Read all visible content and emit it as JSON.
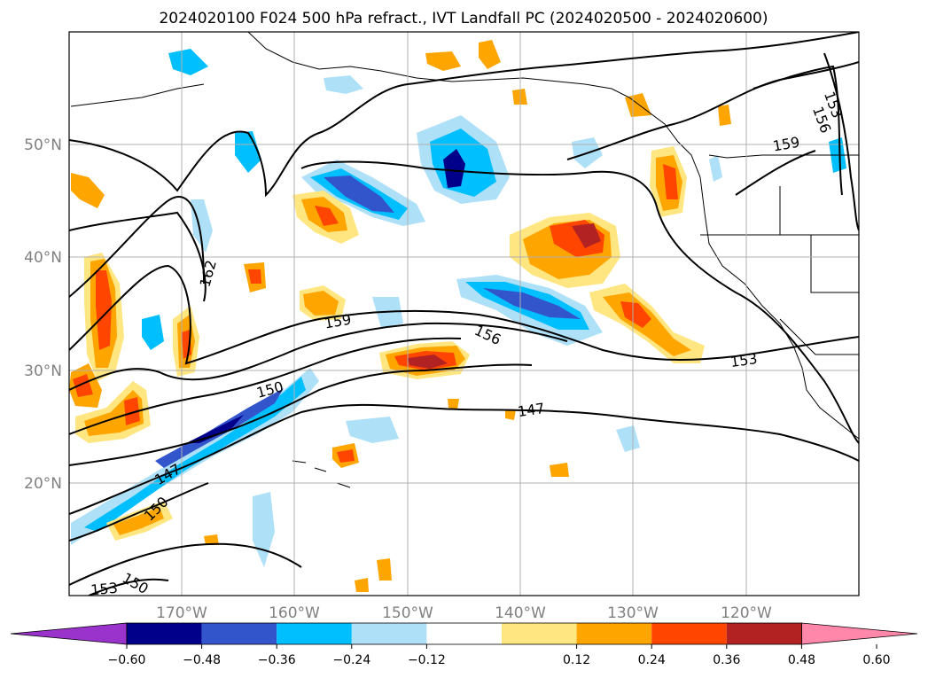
{
  "title": "2024020100 F024 500 hPa refract., IVT Landfall PC (2024020500 - 2024020600)",
  "lat_labels": [
    "50°N",
    "40°N",
    "30°N",
    "20°N"
  ],
  "lon_labels": [
    "170°W",
    "160°W",
    "150°W",
    "140°W",
    "130°W",
    "120°W"
  ],
  "colorbar": {
    "ticks": [
      "−0.60",
      "−0.48",
      "−0.36",
      "−0.24",
      "−0.12",
      "0.12",
      "0.24",
      "0.36",
      "0.48",
      "0.60"
    ],
    "colors": [
      "#9933cc",
      "#00008b",
      "#3355cc",
      "#00bfff",
      "#aee0f8",
      "#ffffff",
      "#ffe680",
      "#ffa500",
      "#ff4500",
      "#b22222",
      "#ff88aa"
    ]
  },
  "contour_labels": [
    "162",
    "159",
    "156",
    "153",
    "150",
    "147",
    "147",
    "150",
    "153",
    "150",
    "159",
    "153",
    "156"
  ],
  "colors": {
    "negative_fill": [
      "#00008b",
      "#3355cc",
      "#00bfff",
      "#aee0f8"
    ],
    "positive_fill": [
      "#ffe680",
      "#ffa500",
      "#ff4500",
      "#b22222"
    ],
    "grid": "#b0b0b0"
  }
}
